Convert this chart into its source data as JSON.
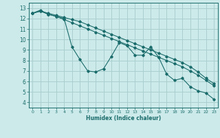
{
  "xlabel": "Humidex (Indice chaleur)",
  "background_color": "#cdeaea",
  "grid_color": "#aacece",
  "line_color": "#1a6b6b",
  "xlim": [
    -0.5,
    23.5
  ],
  "ylim": [
    3.5,
    13.5
  ],
  "yticks": [
    4,
    5,
    6,
    7,
    8,
    9,
    10,
    11,
    12,
    13
  ],
  "xticks": [
    0,
    1,
    2,
    3,
    4,
    5,
    6,
    7,
    8,
    9,
    10,
    11,
    12,
    13,
    14,
    15,
    16,
    17,
    18,
    19,
    20,
    21,
    22,
    23
  ],
  "line1_x": [
    0,
    1,
    2,
    3,
    4,
    5,
    6,
    7,
    8,
    9,
    10,
    11,
    12,
    13,
    14,
    15,
    16,
    17,
    18,
    19,
    20,
    21,
    22,
    23
  ],
  "line1_y": [
    12.5,
    12.8,
    12.4,
    12.2,
    12.0,
    9.3,
    8.1,
    7.0,
    6.9,
    7.2,
    8.4,
    9.7,
    9.4,
    8.5,
    8.5,
    9.3,
    8.3,
    6.7,
    6.1,
    6.3,
    5.5,
    5.1,
    4.9,
    4.3
  ],
  "line2_x": [
    0,
    1,
    2,
    3,
    4,
    5,
    6,
    7,
    8,
    9,
    10,
    11,
    12,
    13,
    14,
    15,
    16,
    17,
    18,
    19,
    20,
    21,
    22,
    23
  ],
  "line2_y": [
    12.5,
    12.7,
    12.5,
    12.3,
    12.1,
    11.9,
    11.7,
    11.4,
    11.1,
    10.8,
    10.5,
    10.2,
    9.9,
    9.6,
    9.3,
    9.0,
    8.7,
    8.4,
    8.1,
    7.8,
    7.4,
    6.9,
    6.3,
    5.8
  ],
  "line3_x": [
    0,
    1,
    2,
    3,
    4,
    5,
    6,
    7,
    8,
    9,
    10,
    11,
    12,
    13,
    14,
    15,
    16,
    17,
    18,
    19,
    20,
    21,
    22,
    23
  ],
  "line3_y": [
    12.5,
    12.7,
    12.4,
    12.2,
    11.9,
    11.6,
    11.3,
    11.0,
    10.7,
    10.4,
    10.1,
    9.8,
    9.5,
    9.2,
    8.9,
    8.6,
    8.3,
    8.0,
    7.7,
    7.4,
    7.0,
    6.6,
    6.1,
    5.6
  ]
}
